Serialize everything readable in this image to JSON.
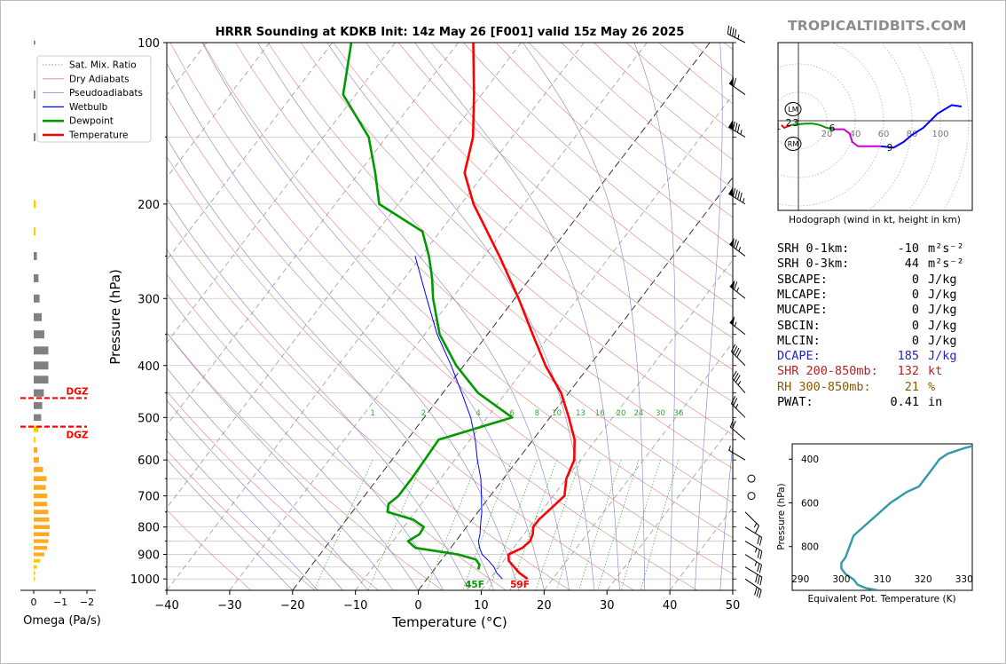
{
  "brand": "TROPICALTIDBITS.COM",
  "skewt": {
    "title": "HRRR Sounding at KDKB Init: 14z May 26 [F001] valid 15z May 26 2025",
    "xlabel": "Temperature (°C)",
    "ylabel": "Pressure (hPa)",
    "pressure_ticks": [
      100,
      200,
      300,
      400,
      500,
      600,
      700,
      800,
      900,
      1000
    ],
    "temp_ticks": [
      -40,
      -30,
      -20,
      -10,
      0,
      10,
      20,
      30,
      40,
      50
    ],
    "mixing_ratio_labels": [
      "1",
      "2",
      "4",
      "6",
      "8",
      "10",
      "13",
      "16",
      "20",
      "24",
      "30",
      "36"
    ],
    "legend": [
      "Sat. Mix. Ratio",
      "Dry Adiabats",
      "Pseudoadiabats",
      "Wetbulb",
      "Dewpoint",
      "Temperature"
    ],
    "surface_temp_label": "59F",
    "surface_dewpoint_label": "45F"
  },
  "chart_data": [
    {
      "type": "line",
      "name": "skew-t",
      "xlabel": "Temperature (°C)",
      "ylabel": "Pressure (hPa)",
      "xlim": [
        -40,
        50
      ],
      "ylim": [
        1050,
        100
      ],
      "y_scale": "log",
      "series": [
        {
          "name": "Temperature",
          "color": "#ff0000",
          "pressure": [
            1000,
            975,
            950,
            925,
            900,
            875,
            850,
            825,
            800,
            775,
            750,
            725,
            700,
            650,
            600,
            550,
            500,
            450,
            400,
            350,
            300,
            250,
            200,
            175,
            150,
            125,
            100
          ],
          "values": [
            16.0,
            14.0,
            12.4,
            10.8,
            10.0,
            11.4,
            11.8,
            11.4,
            10.6,
            10.6,
            11.0,
            11.4,
            11.8,
            10.0,
            9.0,
            6.6,
            3.0,
            -1.2,
            -7.0,
            -12.8,
            -19.4,
            -27.6,
            -38.0,
            -43.2,
            -46.2,
            -51.2,
            -57.6
          ]
        },
        {
          "name": "Dewpoint",
          "color": "#009900",
          "pressure": [
            960,
            940,
            920,
            900,
            875,
            850,
            825,
            800,
            775,
            750,
            725,
            700,
            650,
            600,
            550,
            500,
            450,
            400,
            350,
            300,
            275,
            250,
            225,
            200,
            175,
            150,
            125,
            100
          ],
          "values": [
            7.0,
            6.6,
            5.4,
            2.0,
            -5.6,
            -7.6,
            -6.6,
            -6.8,
            -9.4,
            -14.4,
            -15.2,
            -14.6,
            -14.6,
            -14.8,
            -15.0,
            -6.0,
            -14.4,
            -21.2,
            -27.6,
            -33.0,
            -35.6,
            -38.8,
            -42.8,
            -53.0,
            -57.4,
            -62.8,
            -72.0,
            -77.0
          ]
        },
        {
          "name": "Wetbulb",
          "color": "#0000ff",
          "pressure": [
            1000,
            975,
            950,
            925,
            900,
            875,
            850,
            825,
            800,
            775,
            750,
            725,
            700,
            650,
            600,
            550,
            500,
            450,
            400,
            350,
            300,
            250
          ],
          "values": [
            12.0,
            10.4,
            9.2,
            7.6,
            5.8,
            4.6,
            3.6,
            3.0,
            2.2,
            1.4,
            0.6,
            -0.4,
            -1.4,
            -3.6,
            -6.4,
            -9.2,
            -12.6,
            -17.0,
            -22.0,
            -28.0,
            -34.0,
            -41.0
          ]
        }
      ],
      "wind_barbs": [
        {
          "p": 1000,
          "u": -25,
          "v": 17
        },
        {
          "p": 950,
          "u": -25,
          "v": 15
        },
        {
          "p": 900,
          "u": -22,
          "v": 14
        },
        {
          "p": 850,
          "u": -20,
          "v": 12
        },
        {
          "p": 800,
          "u": -16,
          "v": 10
        },
        {
          "p": 750,
          "u": -12,
          "v": 12
        },
        {
          "p": 700,
          "u": 0,
          "v": 0
        },
        {
          "p": 650,
          "u": 0,
          "v": 0
        },
        {
          "p": 600,
          "u": 5,
          "v": -3
        },
        {
          "p": 550,
          "u": 14,
          "v": -12
        },
        {
          "p": 500,
          "u": 18,
          "v": -18
        },
        {
          "p": 450,
          "u": 22,
          "v": -25
        },
        {
          "p": 400,
          "u": 30,
          "v": -30
        },
        {
          "p": 350,
          "u": 45,
          "v": -35
        },
        {
          "p": 300,
          "u": 50,
          "v": -40
        },
        {
          "p": 250,
          "u": 60,
          "v": -45
        },
        {
          "p": 200,
          "u": 80,
          "v": -50
        },
        {
          "p": 150,
          "u": 75,
          "v": -45
        },
        {
          "p": 125,
          "u": 50,
          "v": -35
        },
        {
          "p": 100,
          "u": 40,
          "v": -20
        }
      ]
    },
    {
      "type": "line",
      "name": "hodograph",
      "xlabel": "Hodograph (wind in kt, height in km)",
      "ring_labels": [
        "20",
        "40",
        "60",
        "80",
        "100"
      ],
      "height_labels": [
        "1",
        "2",
        "3",
        "6",
        "9"
      ],
      "storm_motion_labels": [
        "LM",
        "RM"
      ],
      "segments": [
        {
          "color": "#ff0000",
          "points": [
            [
              -12,
              -3
            ],
            [
              -10,
              -5
            ],
            [
              -5,
              -3
            ]
          ]
        },
        {
          "color": "#009900",
          "points": [
            [
              -5,
              -3
            ],
            [
              5,
              -2
            ],
            [
              10,
              -2
            ],
            [
              15,
              -3
            ],
            [
              20,
              -5
            ],
            [
              25,
              -6
            ]
          ]
        },
        {
          "color": "#cc00cc",
          "points": [
            [
              25,
              -6
            ],
            [
              32,
              -6
            ],
            [
              36,
              -9
            ],
            [
              38,
              -15
            ],
            [
              42,
              -18
            ],
            [
              50,
              -18
            ],
            [
              58,
              -18
            ]
          ]
        },
        {
          "color": "#0000ff",
          "points": [
            [
              58,
              -18
            ],
            [
              67,
              -19
            ],
            [
              74,
              -15
            ],
            [
              80,
              -10
            ],
            [
              88,
              -5
            ],
            [
              98,
              5
            ],
            [
              108,
              11
            ],
            [
              115,
              10
            ]
          ]
        }
      ]
    },
    {
      "type": "line",
      "name": "theta-e",
      "xlabel": "Equivalent Pot. Temperature (K)",
      "ylabel": "Pressure (hPa)",
      "xlim": [
        288,
        332
      ],
      "ylim": [
        1000,
        330
      ],
      "x_ticks": [
        290,
        300,
        310,
        320,
        330
      ],
      "y_ticks": [
        400,
        600,
        800
      ],
      "color": "#3399aa",
      "pressure": [
        1000,
        990,
        975,
        950,
        925,
        900,
        875,
        850,
        800,
        750,
        700,
        650,
        600,
        550,
        525,
        500,
        450,
        400,
        375,
        350,
        330
      ],
      "values": [
        309,
        306,
        304,
        303,
        301,
        300,
        300,
        301,
        302,
        303,
        306,
        309,
        312,
        316,
        319,
        320,
        322,
        324,
        326,
        330,
        334
      ]
    },
    {
      "type": "bar",
      "name": "omega",
      "xlabel": "Omega (Pa/s)",
      "x_ticks": [
        "0",
        "−1",
        "−2"
      ],
      "dgz_label": "DGZ",
      "dgz_pressures": [
        460,
        520
      ],
      "pressure": [
        100,
        125,
        150,
        200,
        225,
        250,
        275,
        300,
        325,
        350,
        375,
        400,
        425,
        450,
        475,
        500,
        525,
        550,
        575,
        600,
        625,
        650,
        675,
        700,
        725,
        750,
        775,
        800,
        825,
        850,
        875,
        900,
        925,
        950,
        975,
        1000
      ],
      "values": [
        -0.06,
        -0.06,
        -0.07,
        -0.08,
        -0.07,
        -0.12,
        -0.18,
        -0.22,
        -0.3,
        -0.4,
        -0.55,
        -0.55,
        -0.55,
        -0.38,
        -0.32,
        -0.28,
        -0.18,
        -0.06,
        -0.14,
        -0.2,
        -0.35,
        -0.48,
        -0.45,
        -0.5,
        -0.5,
        -0.55,
        -0.58,
        -0.6,
        -0.58,
        -0.55,
        -0.5,
        -0.4,
        -0.25,
        -0.12,
        -0.06,
        -0.03
      ],
      "colors": [
        "#808080",
        "#808080",
        "#808080",
        "#ffcc00",
        "#ffcc00",
        "#808080",
        "#808080",
        "#808080",
        "#808080",
        "#808080",
        "#808080",
        "#808080",
        "#808080",
        "#808080",
        "#808080",
        "#808080",
        "#ffcc00",
        "#ffcc00",
        "#ffaa22",
        "#ffaa22",
        "#ffaa22",
        "#ffaa22",
        "#ffaa22",
        "#ffaa22",
        "#ffaa22",
        "#ffaa22",
        "#ffaa22",
        "#ffaa22",
        "#ffaa22",
        "#ffaa22",
        "#ffaa22",
        "#ffaa22",
        "#ffcc00",
        "#ffcc00",
        "#ffcc00",
        "#ffcc00"
      ]
    }
  ],
  "indices": [
    {
      "label": "SRH 0-1km:",
      "value": "-10",
      "unit": "m²s⁻²",
      "color": "#000000"
    },
    {
      "label": "SRH 0-3km:",
      "value": "44",
      "unit": "m²s⁻²",
      "color": "#000000"
    },
    {
      "label": "SBCAPE:",
      "value": "0",
      "unit": "J/kg",
      "color": "#000000"
    },
    {
      "label": "MLCAPE:",
      "value": "0",
      "unit": "J/kg",
      "color": "#000000"
    },
    {
      "label": "MUCAPE:",
      "value": "0",
      "unit": "J/kg",
      "color": "#000000"
    },
    {
      "label": "SBCIN:",
      "value": "0",
      "unit": "J/kg",
      "color": "#000000"
    },
    {
      "label": "MLCIN:",
      "value": "0",
      "unit": "J/kg",
      "color": "#000000"
    },
    {
      "label": "DCAPE:",
      "value": "185",
      "unit": "J/kg",
      "color": "#1f1fd0"
    },
    {
      "label": "SHR 200-850mb:",
      "value": "132",
      "unit": "kt",
      "color": "#b22222"
    },
    {
      "label": "RH 300-850mb:",
      "value": "21",
      "unit": "%",
      "color": "#8b5a00"
    },
    {
      "label": "PWAT:",
      "value": "0.41",
      "unit": "in",
      "color": "#000000"
    }
  ]
}
